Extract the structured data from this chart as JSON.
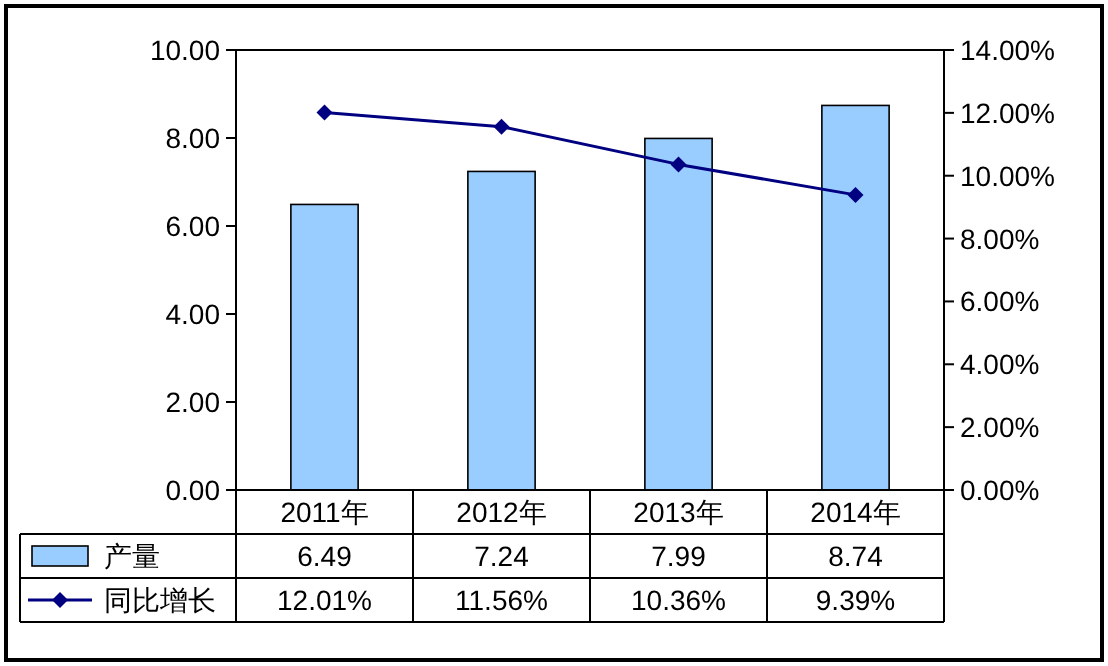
{
  "chart_data": {
    "type": "bar",
    "categories": [
      "2011年",
      "2012年",
      "2013年",
      "2014年"
    ],
    "series": [
      {
        "name": "产量",
        "color": "#99ccff",
        "values": [
          6.49,
          7.24,
          7.99,
          8.74
        ],
        "value_labels": [
          "6.49",
          "7.24",
          "7.99",
          "8.74"
        ]
      },
      {
        "name": "同比增长",
        "type": "line",
        "axis": "y2",
        "color": "#000080",
        "marker": "diamond",
        "values": [
          12.01,
          11.56,
          10.36,
          9.39
        ],
        "value_labels": [
          "12.01%",
          "11.56%",
          "10.36%",
          "9.39%"
        ]
      }
    ],
    "ylim": [
      0,
      10
    ],
    "yticks": [
      {
        "value": 0,
        "label": "0.00"
      },
      {
        "value": 2,
        "label": "2.00"
      },
      {
        "value": 4,
        "label": "4.00"
      },
      {
        "value": 6,
        "label": "6.00"
      },
      {
        "value": 8,
        "label": "8.00"
      },
      {
        "value": 10,
        "label": "10.00"
      }
    ],
    "y2lim": [
      0,
      14
    ],
    "y2ticks": [
      {
        "value": 0,
        "label": "0.00%"
      },
      {
        "value": 2,
        "label": "2.00%"
      },
      {
        "value": 4,
        "label": "4.00%"
      },
      {
        "value": 6,
        "label": "6.00%"
      },
      {
        "value": 8,
        "label": "8.00%"
      },
      {
        "value": 10,
        "label": "10.00%"
      },
      {
        "value": 12,
        "label": "12.00%"
      },
      {
        "value": 14,
        "label": "14.00%"
      }
    ],
    "legend": "bottom",
    "grid": false
  }
}
